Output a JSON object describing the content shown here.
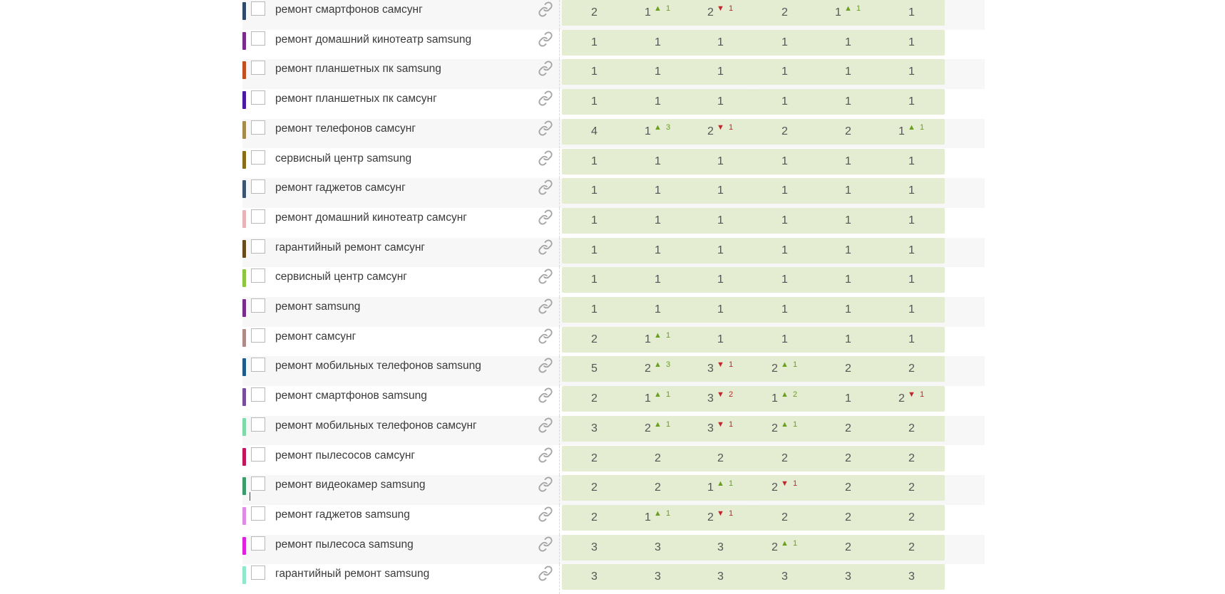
{
  "table": {
    "rows": [
      {
        "color": "#2f4a6b",
        "keyword": "ремонт смартфонов самсунг",
        "cells": [
          {
            "pos": "2"
          },
          {
            "pos": "1",
            "dir": "up",
            "delta": "1"
          },
          {
            "pos": "2",
            "dir": "down",
            "delta": "1"
          },
          {
            "pos": "2"
          },
          {
            "pos": "1",
            "dir": "up",
            "delta": "1"
          },
          {
            "pos": "1"
          }
        ]
      },
      {
        "color": "#7b2d8e",
        "keyword": "ремонт домашний кинотеатр samsung",
        "cells": [
          {
            "pos": "1"
          },
          {
            "pos": "1"
          },
          {
            "pos": "1"
          },
          {
            "pos": "1"
          },
          {
            "pos": "1"
          },
          {
            "pos": "1"
          }
        ]
      },
      {
        "color": "#c24d1e",
        "keyword": "ремонт планшетных пк samsung",
        "cells": [
          {
            "pos": "1"
          },
          {
            "pos": "1"
          },
          {
            "pos": "1"
          },
          {
            "pos": "1"
          },
          {
            "pos": "1"
          },
          {
            "pos": "1"
          }
        ]
      },
      {
        "color": "#4a1aa6",
        "keyword": "ремонт планшетных пк самсунг",
        "cells": [
          {
            "pos": "1"
          },
          {
            "pos": "1"
          },
          {
            "pos": "1"
          },
          {
            "pos": "1"
          },
          {
            "pos": "1"
          },
          {
            "pos": "1"
          }
        ]
      },
      {
        "color": "#a58a4c",
        "keyword": "ремонт телефонов самсунг",
        "cells": [
          {
            "pos": "4"
          },
          {
            "pos": "1",
            "dir": "up",
            "delta": "3"
          },
          {
            "pos": "2",
            "dir": "down",
            "delta": "1"
          },
          {
            "pos": "2"
          },
          {
            "pos": "2"
          },
          {
            "pos": "1",
            "dir": "up",
            "delta": "1"
          }
        ]
      },
      {
        "color": "#8a6d1a",
        "keyword": "сервисный центр samsung",
        "cells": [
          {
            "pos": "1"
          },
          {
            "pos": "1"
          },
          {
            "pos": "1"
          },
          {
            "pos": "1"
          },
          {
            "pos": "1"
          },
          {
            "pos": "1"
          }
        ]
      },
      {
        "color": "#3b5573",
        "keyword": "ремонт гаджетов самсунг",
        "cells": [
          {
            "pos": "1"
          },
          {
            "pos": "1"
          },
          {
            "pos": "1"
          },
          {
            "pos": "1"
          },
          {
            "pos": "1"
          },
          {
            "pos": "1"
          }
        ]
      },
      {
        "color": "#e8b4b8",
        "keyword": "ремонт домашний кинотеатр самсунг",
        "cells": [
          {
            "pos": "1"
          },
          {
            "pos": "1"
          },
          {
            "pos": "1"
          },
          {
            "pos": "1"
          },
          {
            "pos": "1"
          },
          {
            "pos": "1"
          }
        ]
      },
      {
        "color": "#6b4a1f",
        "keyword": "гарантийный ремонт самсунг",
        "cells": [
          {
            "pos": "1"
          },
          {
            "pos": "1"
          },
          {
            "pos": "1"
          },
          {
            "pos": "1"
          },
          {
            "pos": "1"
          },
          {
            "pos": "1"
          }
        ]
      },
      {
        "color": "#8cc63f",
        "keyword": "сервисный центр самсунг",
        "cells": [
          {
            "pos": "1"
          },
          {
            "pos": "1"
          },
          {
            "pos": "1"
          },
          {
            "pos": "1"
          },
          {
            "pos": "1"
          },
          {
            "pos": "1"
          }
        ]
      },
      {
        "color": "#7b2d8e",
        "keyword": "ремонт samsung",
        "cells": [
          {
            "pos": "1"
          },
          {
            "pos": "1"
          },
          {
            "pos": "1"
          },
          {
            "pos": "1"
          },
          {
            "pos": "1"
          },
          {
            "pos": "1"
          }
        ]
      },
      {
        "color": "#b08a86",
        "keyword": "ремонт самсунг",
        "cells": [
          {
            "pos": "2"
          },
          {
            "pos": "1",
            "dir": "up",
            "delta": "1"
          },
          {
            "pos": "1"
          },
          {
            "pos": "1"
          },
          {
            "pos": "1"
          },
          {
            "pos": "1"
          }
        ]
      },
      {
        "color": "#1f5c8c",
        "keyword": "ремонт мобильных телефонов samsung",
        "cells": [
          {
            "pos": "5"
          },
          {
            "pos": "2",
            "dir": "up",
            "delta": "3"
          },
          {
            "pos": "3",
            "dir": "down",
            "delta": "1"
          },
          {
            "pos": "2",
            "dir": "up",
            "delta": "1"
          },
          {
            "pos": "2"
          },
          {
            "pos": "2"
          }
        ]
      },
      {
        "color": "#7a4d9c",
        "keyword": "ремонт смартфонов samsung",
        "cells": [
          {
            "pos": "2"
          },
          {
            "pos": "1",
            "dir": "up",
            "delta": "1"
          },
          {
            "pos": "3",
            "dir": "down",
            "delta": "2"
          },
          {
            "pos": "1",
            "dir": "up",
            "delta": "2"
          },
          {
            "pos": "1"
          },
          {
            "pos": "2",
            "dir": "down",
            "delta": "1"
          }
        ]
      },
      {
        "color": "#7fd9a8",
        "keyword": "ремонт мобильных телефонов самсунг",
        "cells": [
          {
            "pos": "3"
          },
          {
            "pos": "2",
            "dir": "up",
            "delta": "1"
          },
          {
            "pos": "3",
            "dir": "down",
            "delta": "1"
          },
          {
            "pos": "2",
            "dir": "up",
            "delta": "1"
          },
          {
            "pos": "2"
          },
          {
            "pos": "2"
          }
        ]
      },
      {
        "color": "#c2185b",
        "keyword": "ремонт пылесосов самсунг",
        "cells": [
          {
            "pos": "2"
          },
          {
            "pos": "2"
          },
          {
            "pos": "2"
          },
          {
            "pos": "2"
          },
          {
            "pos": "2"
          },
          {
            "pos": "2"
          }
        ]
      },
      {
        "color": "#3d9a6b",
        "keyword": "ремонт видеокамер samsung",
        "cells": [
          {
            "pos": "2"
          },
          {
            "pos": "2"
          },
          {
            "pos": "1",
            "dir": "up",
            "delta": "1"
          },
          {
            "pos": "2",
            "dir": "down",
            "delta": "1"
          },
          {
            "pos": "2"
          },
          {
            "pos": "2"
          }
        ]
      },
      {
        "color": "#e08be6",
        "keyword": "ремонт гаджетов samsung",
        "cells": [
          {
            "pos": "2"
          },
          {
            "pos": "1",
            "dir": "up",
            "delta": "1"
          },
          {
            "pos": "2",
            "dir": "down",
            "delta": "1"
          },
          {
            "pos": "2"
          },
          {
            "pos": "2"
          },
          {
            "pos": "2"
          }
        ]
      },
      {
        "color": "#e020e0",
        "keyword": "ремонт пылесоса samsung",
        "cells": [
          {
            "pos": "3"
          },
          {
            "pos": "3"
          },
          {
            "pos": "3"
          },
          {
            "pos": "2",
            "dir": "up",
            "delta": "1"
          },
          {
            "pos": "2"
          },
          {
            "pos": "2"
          }
        ]
      },
      {
        "color": "#8fe8c8",
        "keyword": "гарантийный ремонт samsung",
        "cells": [
          {
            "pos": "3"
          },
          {
            "pos": "3"
          },
          {
            "pos": "3"
          },
          {
            "pos": "3"
          },
          {
            "pos": "3"
          },
          {
            "pos": "3"
          }
        ]
      }
    ]
  }
}
